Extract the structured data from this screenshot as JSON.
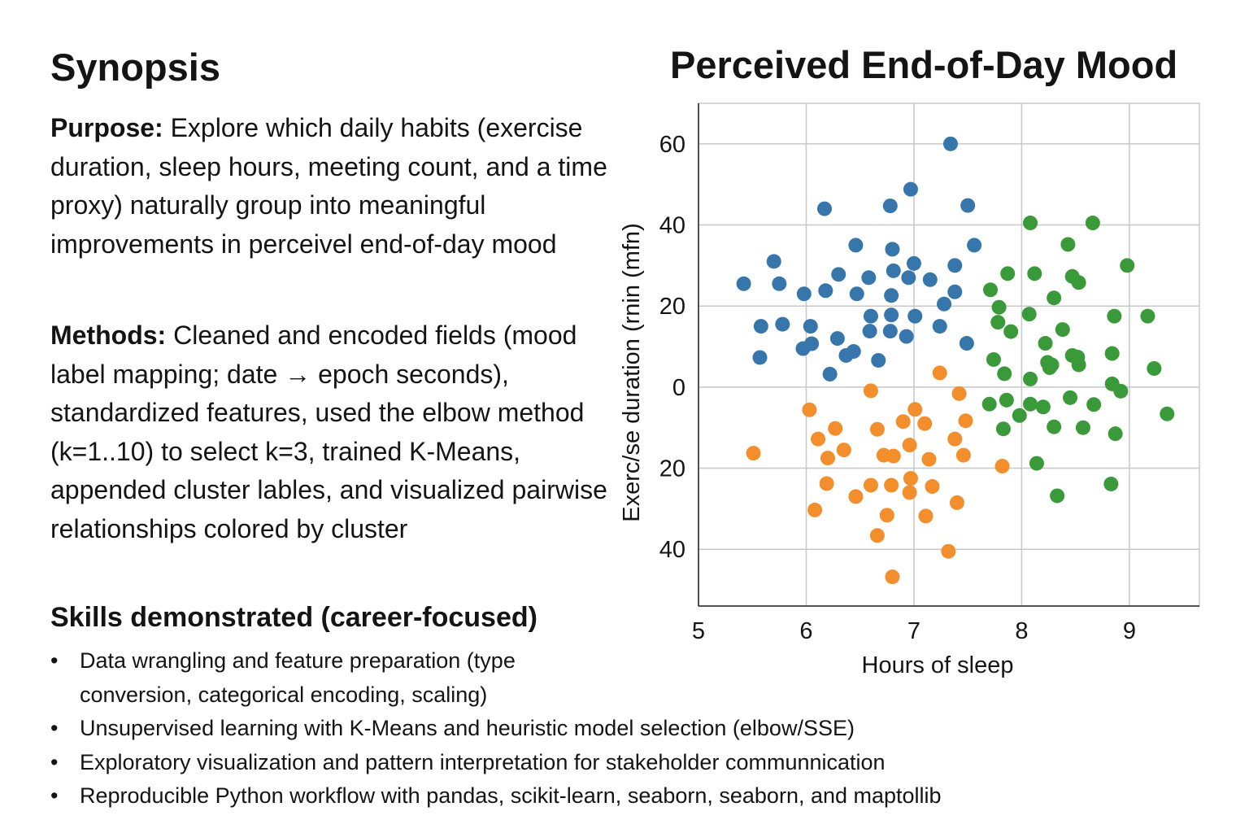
{
  "synopsis": {
    "title": "Synopsis",
    "purpose_label": "Purpose:",
    "purpose_text": "Explore which daily habits (exercise duration, sleep hours, meeting count, and a time proxy) naturally group into meaningful improvements in perceivel end-of-day mood",
    "methods_label": "Methods:",
    "methods_text": "Cleaned and encoded fields (mood label mapping; date → epoch seconds), standardized features, used the elbow method (k=1..10) to select k=3, trained K-Means, appended cluster lables, and visualized pairwise relationships colored by cluster",
    "skills_title": "Skills demonstrated (career-focused)",
    "skills": [
      "Data wrangling and feature preparation (type conversion, categorical encoding, scaling)",
      "Unsupervised learning with K-Means and heuristic model selection (elbow/SSE)",
      "Exploratory visualization and pattern interpretation for stakeholder communnication",
      "Reproducible Python workflow with pandas, scikit-learn, seaborn, seaborn, and maptollib"
    ]
  },
  "chart_data": {
    "type": "scatter",
    "title": "Perceived End-of-Day Mood",
    "xlabel": "Hours of sleep",
    "ylabel": "Exerc/se duration (rnin (mfn)",
    "xlim": [
      5,
      9.65
    ],
    "ylim": [
      -54,
      70
    ],
    "grid": true,
    "x_ticks": [
      5,
      6,
      7,
      8,
      9
    ],
    "y_ticks": [
      {
        "value": 60,
        "label": "60"
      },
      {
        "value": 40,
        "label": "40"
      },
      {
        "value": 20,
        "label": "20"
      },
      {
        "value": 0,
        "label": "0"
      },
      {
        "value": -20,
        "label": "20"
      },
      {
        "value": -40,
        "label": "40"
      }
    ],
    "colors": [
      "#3776ab",
      "#f28e2b",
      "#3a9a3a"
    ],
    "series": [
      {
        "points": [
          [
            5.42,
            25.5
          ],
          [
            5.7,
            31
          ],
          [
            5.75,
            25.5
          ],
          [
            5.58,
            15
          ],
          [
            5.78,
            15.5
          ],
          [
            5.57,
            7.3
          ],
          [
            5.98,
            23
          ],
          [
            6.18,
            23.8
          ],
          [
            6.17,
            44
          ],
          [
            6.04,
            15
          ],
          [
            6.05,
            10.7
          ],
          [
            5.97,
            9.5
          ],
          [
            6.22,
            3.2
          ],
          [
            6.3,
            27.8
          ],
          [
            6.29,
            12
          ],
          [
            6.37,
            7.8
          ],
          [
            6.44,
            8.8
          ],
          [
            6.46,
            35
          ],
          [
            6.47,
            23
          ],
          [
            6.58,
            27
          ],
          [
            6.6,
            17.5
          ],
          [
            6.59,
            13.8
          ],
          [
            6.67,
            6.6
          ],
          [
            6.78,
            44.7
          ],
          [
            6.8,
            34
          ],
          [
            6.81,
            28.7
          ],
          [
            6.79,
            22.6
          ],
          [
            6.79,
            17.8
          ],
          [
            6.78,
            13.8
          ],
          [
            6.97,
            48.8
          ],
          [
            6.95,
            27
          ],
          [
            7.0,
            30.5
          ],
          [
            7.01,
            17.5
          ],
          [
            6.93,
            12.5
          ],
          [
            7.15,
            26.5
          ],
          [
            7.24,
            15
          ],
          [
            7.34,
            60
          ],
          [
            7.28,
            20.5
          ],
          [
            7.38,
            23.5
          ],
          [
            7.38,
            30
          ],
          [
            7.5,
            44.8
          ],
          [
            7.56,
            35
          ],
          [
            7.49,
            10.8
          ]
        ]
      },
      {
        "points": [
          [
            5.51,
            -16.3
          ],
          [
            6.03,
            -5.6
          ],
          [
            6.08,
            -30.3
          ],
          [
            6.11,
            -12.8
          ],
          [
            6.2,
            -17.5
          ],
          [
            6.19,
            -23.8
          ],
          [
            6.27,
            -10.2
          ],
          [
            6.35,
            -15.5
          ],
          [
            6.46,
            -27
          ],
          [
            6.6,
            -24.2
          ],
          [
            6.6,
            -0.9
          ],
          [
            6.66,
            -10.4
          ],
          [
            6.66,
            -36.6
          ],
          [
            6.72,
            -16.8
          ],
          [
            6.75,
            -31.6
          ],
          [
            6.79,
            -24.2
          ],
          [
            6.8,
            -46.8
          ],
          [
            6.81,
            -17
          ],
          [
            6.9,
            -8.5
          ],
          [
            6.96,
            -14.3
          ],
          [
            6.97,
            -22.5
          ],
          [
            6.96,
            -26
          ],
          [
            7.01,
            -5.5
          ],
          [
            7.1,
            -9
          ],
          [
            7.11,
            -31.8
          ],
          [
            7.14,
            -17.8
          ],
          [
            7.17,
            -24.5
          ],
          [
            7.24,
            3.5
          ],
          [
            7.32,
            -40.5
          ],
          [
            7.38,
            -12.8
          ],
          [
            7.4,
            -28.5
          ],
          [
            7.42,
            -1.6
          ],
          [
            7.46,
            -16.8
          ],
          [
            7.48,
            -8.3
          ],
          [
            7.82,
            -19.5
          ]
        ]
      },
      {
        "points": [
          [
            7.7,
            -4.2
          ],
          [
            7.71,
            24
          ],
          [
            7.74,
            6.8
          ],
          [
            7.78,
            16
          ],
          [
            7.79,
            19.7
          ],
          [
            7.83,
            -10.3
          ],
          [
            7.84,
            3.3
          ],
          [
            7.86,
            -3.2
          ],
          [
            7.87,
            28
          ],
          [
            7.9,
            13.7
          ],
          [
            7.98,
            -7
          ],
          [
            8.08,
            40.5
          ],
          [
            8.07,
            18
          ],
          [
            8.08,
            2
          ],
          [
            8.08,
            -4.2
          ],
          [
            8.12,
            28
          ],
          [
            8.14,
            -18.8
          ],
          [
            8.2,
            -4.9
          ],
          [
            8.22,
            10.8
          ],
          [
            8.24,
            6.1
          ],
          [
            8.26,
            4.8
          ],
          [
            8.28,
            5.5
          ],
          [
            8.3,
            22
          ],
          [
            8.3,
            -9.8
          ],
          [
            8.33,
            -26.8
          ],
          [
            8.38,
            14.2
          ],
          [
            8.43,
            35.2
          ],
          [
            8.45,
            -2.6
          ],
          [
            8.47,
            27.3
          ],
          [
            8.47,
            7.8
          ],
          [
            8.52,
            7.4
          ],
          [
            8.53,
            5.5
          ],
          [
            8.53,
            25.8
          ],
          [
            8.57,
            -10
          ],
          [
            8.66,
            40.5
          ],
          [
            8.67,
            -4.3
          ],
          [
            8.83,
            -23.9
          ],
          [
            8.84,
            0.8
          ],
          [
            8.84,
            8.3
          ],
          [
            8.86,
            17.5
          ],
          [
            8.87,
            -11.5
          ],
          [
            8.92,
            -1
          ],
          [
            8.98,
            30
          ],
          [
            9.17,
            17.5
          ],
          [
            9.23,
            4.6
          ],
          [
            9.35,
            -6.6
          ]
        ]
      }
    ]
  }
}
